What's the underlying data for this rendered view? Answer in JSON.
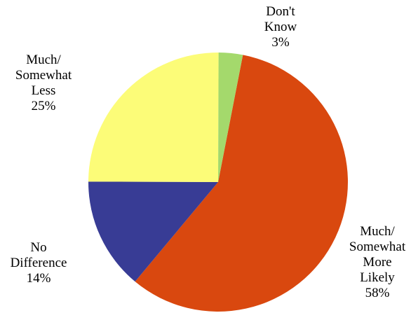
{
  "chart_data": {
    "type": "pie",
    "start_angle_deg": 11,
    "direction": "clockwise",
    "slices": [
      {
        "label": [
          "Much/",
          "Somewhat",
          "More",
          "Likely"
        ],
        "pct_text": "58%",
        "value": 58,
        "color": "#D9480F"
      },
      {
        "label": [
          "No",
          "Difference"
        ],
        "pct_text": "14%",
        "value": 14,
        "color": "#383C95"
      },
      {
        "label": [
          "Much/",
          "Somewhat",
          "Less"
        ],
        "pct_text": "25%",
        "value": 25,
        "color": "#FCFC78"
      },
      {
        "label": [
          "Don't",
          "Know"
        ],
        "pct_text": "3%",
        "value": 3,
        "color": "#A4D96C"
      }
    ]
  }
}
